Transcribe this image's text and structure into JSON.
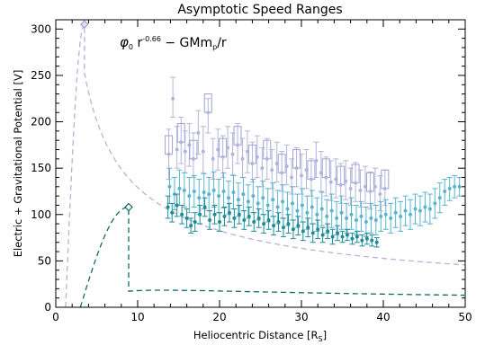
{
  "chart_data": {
    "type": "scatter",
    "title": "Asymptotic Speed Ranges",
    "xlabel": "Heliocentric Distance [R",
    "xlabel_sub": "S",
    "xlabel_end": "]",
    "ylabel": "Electric + Gravitational Potential [V]",
    "xlim": [
      0,
      50
    ],
    "ylim": [
      0,
      310
    ],
    "xticks": [
      0,
      10,
      20,
      30,
      40,
      50
    ],
    "yticks": [
      0,
      50,
      100,
      150,
      200,
      250,
      300
    ],
    "grid": false,
    "annotation": {
      "phi": "φ",
      "phi_sub": "0",
      "r": " r",
      "exponent": "-0.66",
      "rest": " − GMm",
      "p_sub": "p",
      "tail": "/r"
    },
    "colors": {
      "upper": "#b4b4dc",
      "upper_box": "#a0a0d2",
      "mid": "#5ab4cd",
      "lower": "#1e8c96",
      "lower_dark": "#0f6e64"
    },
    "curves": [
      {
        "name": "upper",
        "r0": 3.5,
        "peak": 305,
        "A": 620.6,
        "B": 66.5
      },
      {
        "name": "lower",
        "r0": 8.9,
        "peak": 108,
        "A": 295.3,
        "B": 466.9
      }
    ],
    "peak_markers": [
      {
        "series": "upper",
        "x": 3.5,
        "y": 305
      },
      {
        "series": "lower",
        "x": 8.9,
        "y": 108
      }
    ],
    "series": [
      {
        "name": "upper",
        "points": [
          {
            "x": 13.8,
            "y": 165,
            "lo": 138,
            "hi": 192
          },
          {
            "x": 14.3,
            "y": 225,
            "lo": 205,
            "hi": 248
          },
          {
            "x": 14.8,
            "y": 170,
            "lo": 150,
            "hi": 195
          },
          {
            "x": 15.3,
            "y": 178,
            "lo": 155,
            "hi": 205
          },
          {
            "x": 15.8,
            "y": 168,
            "lo": 145,
            "hi": 190
          },
          {
            "x": 16.3,
            "y": 175,
            "lo": 152,
            "hi": 198
          },
          {
            "x": 16.8,
            "y": 160,
            "lo": 140,
            "hi": 188
          },
          {
            "x": 17.4,
            "y": 188,
            "lo": 165,
            "hi": 212
          },
          {
            "x": 18.0,
            "y": 168,
            "lo": 145,
            "hi": 195
          },
          {
            "x": 18.6,
            "y": 210,
            "lo": 188,
            "hi": 225
          },
          {
            "x": 19.2,
            "y": 160,
            "lo": 138,
            "hi": 182
          },
          {
            "x": 19.8,
            "y": 170,
            "lo": 148,
            "hi": 192
          },
          {
            "x": 20.4,
            "y": 162,
            "lo": 140,
            "hi": 185
          },
          {
            "x": 21.0,
            "y": 172,
            "lo": 150,
            "hi": 195
          },
          {
            "x": 21.6,
            "y": 165,
            "lo": 143,
            "hi": 188
          },
          {
            "x": 22.2,
            "y": 175,
            "lo": 155,
            "hi": 198
          },
          {
            "x": 22.8,
            "y": 160,
            "lo": 140,
            "hi": 182
          },
          {
            "x": 23.4,
            "y": 168,
            "lo": 145,
            "hi": 190
          },
          {
            "x": 24.0,
            "y": 155,
            "lo": 135,
            "hi": 178
          },
          {
            "x": 24.6,
            "y": 162,
            "lo": 140,
            "hi": 185
          },
          {
            "x": 25.2,
            "y": 150,
            "lo": 130,
            "hi": 172
          },
          {
            "x": 25.8,
            "y": 160,
            "lo": 138,
            "hi": 182
          },
          {
            "x": 26.4,
            "y": 148,
            "lo": 128,
            "hi": 170
          },
          {
            "x": 27.0,
            "y": 155,
            "lo": 135,
            "hi": 178
          },
          {
            "x": 27.6,
            "y": 145,
            "lo": 125,
            "hi": 168
          },
          {
            "x": 28.2,
            "y": 152,
            "lo": 132,
            "hi": 175
          },
          {
            "x": 28.8,
            "y": 140,
            "lo": 122,
            "hi": 160
          },
          {
            "x": 29.4,
            "y": 150,
            "lo": 130,
            "hi": 172
          },
          {
            "x": 30.0,
            "y": 142,
            "lo": 122,
            "hi": 165
          },
          {
            "x": 30.6,
            "y": 148,
            "lo": 128,
            "hi": 170
          },
          {
            "x": 31.2,
            "y": 138,
            "lo": 120,
            "hi": 160
          },
          {
            "x": 31.8,
            "y": 158,
            "lo": 140,
            "hi": 178
          },
          {
            "x": 32.4,
            "y": 145,
            "lo": 125,
            "hi": 168
          },
          {
            "x": 33.0,
            "y": 140,
            "lo": 120,
            "hi": 162
          },
          {
            "x": 33.6,
            "y": 135,
            "lo": 115,
            "hi": 158
          },
          {
            "x": 34.2,
            "y": 138,
            "lo": 118,
            "hi": 160
          },
          {
            "x": 34.8,
            "y": 132,
            "lo": 112,
            "hi": 155
          },
          {
            "x": 35.4,
            "y": 136,
            "lo": 116,
            "hi": 158
          },
          {
            "x": 36.0,
            "y": 128,
            "lo": 110,
            "hi": 150
          },
          {
            "x": 36.6,
            "y": 134,
            "lo": 114,
            "hi": 156
          },
          {
            "x": 37.2,
            "y": 126,
            "lo": 108,
            "hi": 148
          },
          {
            "x": 37.8,
            "y": 130,
            "lo": 112,
            "hi": 152
          },
          {
            "x": 38.4,
            "y": 125,
            "lo": 106,
            "hi": 146
          },
          {
            "x": 39.0,
            "y": 130,
            "lo": 110,
            "hi": 150
          },
          {
            "x": 39.6,
            "y": 122,
            "lo": 104,
            "hi": 142
          },
          {
            "x": 40.2,
            "y": 128,
            "lo": 110,
            "hi": 148
          }
        ]
      },
      {
        "name": "mid",
        "points": [
          {
            "x": 13.9,
            "y": 130,
            "lo": 112,
            "hi": 150
          },
          {
            "x": 14.5,
            "y": 122,
            "lo": 105,
            "hi": 140
          },
          {
            "x": 15.1,
            "y": 128,
            "lo": 110,
            "hi": 148
          },
          {
            "x": 15.7,
            "y": 126,
            "lo": 108,
            "hi": 145
          },
          {
            "x": 16.3,
            "y": 120,
            "lo": 102,
            "hi": 140
          },
          {
            "x": 16.9,
            "y": 125,
            "lo": 108,
            "hi": 142
          },
          {
            "x": 17.5,
            "y": 118,
            "lo": 100,
            "hi": 138
          },
          {
            "x": 18.1,
            "y": 124,
            "lo": 106,
            "hi": 144
          },
          {
            "x": 18.7,
            "y": 122,
            "lo": 104,
            "hi": 140
          },
          {
            "x": 19.3,
            "y": 126,
            "lo": 108,
            "hi": 146
          },
          {
            "x": 19.9,
            "y": 120,
            "lo": 102,
            "hi": 138
          },
          {
            "x": 20.5,
            "y": 125,
            "lo": 107,
            "hi": 145
          },
          {
            "x": 21.1,
            "y": 118,
            "lo": 100,
            "hi": 136
          },
          {
            "x": 21.7,
            "y": 124,
            "lo": 106,
            "hi": 142
          },
          {
            "x": 22.3,
            "y": 116,
            "lo": 98,
            "hi": 134
          },
          {
            "x": 22.9,
            "y": 122,
            "lo": 104,
            "hi": 140
          },
          {
            "x": 23.5,
            "y": 114,
            "lo": 96,
            "hi": 132
          },
          {
            "x": 24.1,
            "y": 120,
            "lo": 102,
            "hi": 138
          },
          {
            "x": 24.7,
            "y": 112,
            "lo": 94,
            "hi": 130
          },
          {
            "x": 25.3,
            "y": 118,
            "lo": 100,
            "hi": 136
          },
          {
            "x": 25.9,
            "y": 110,
            "lo": 92,
            "hi": 128
          },
          {
            "x": 26.5,
            "y": 116,
            "lo": 98,
            "hi": 134
          },
          {
            "x": 27.1,
            "y": 108,
            "lo": 90,
            "hi": 126
          },
          {
            "x": 27.7,
            "y": 114,
            "lo": 96,
            "hi": 132
          },
          {
            "x": 28.3,
            "y": 106,
            "lo": 88,
            "hi": 124
          },
          {
            "x": 28.9,
            "y": 112,
            "lo": 94,
            "hi": 130
          },
          {
            "x": 29.5,
            "y": 104,
            "lo": 86,
            "hi": 122
          },
          {
            "x": 30.1,
            "y": 110,
            "lo": 92,
            "hi": 128
          },
          {
            "x": 30.7,
            "y": 102,
            "lo": 84,
            "hi": 120
          },
          {
            "x": 31.3,
            "y": 108,
            "lo": 90,
            "hi": 126
          },
          {
            "x": 31.9,
            "y": 100,
            "lo": 82,
            "hi": 118
          },
          {
            "x": 32.5,
            "y": 106,
            "lo": 88,
            "hi": 124
          },
          {
            "x": 33.1,
            "y": 98,
            "lo": 80,
            "hi": 116
          },
          {
            "x": 33.7,
            "y": 104,
            "lo": 86,
            "hi": 122
          },
          {
            "x": 34.3,
            "y": 96,
            "lo": 78,
            "hi": 114
          },
          {
            "x": 34.9,
            "y": 102,
            "lo": 84,
            "hi": 120
          },
          {
            "x": 35.5,
            "y": 96,
            "lo": 80,
            "hi": 112
          },
          {
            "x": 36.1,
            "y": 100,
            "lo": 84,
            "hi": 118
          },
          {
            "x": 36.7,
            "y": 94,
            "lo": 78,
            "hi": 110
          },
          {
            "x": 37.3,
            "y": 98,
            "lo": 82,
            "hi": 114
          },
          {
            "x": 37.9,
            "y": 92,
            "lo": 76,
            "hi": 108
          },
          {
            "x": 38.5,
            "y": 96,
            "lo": 80,
            "hi": 112
          },
          {
            "x": 39.1,
            "y": 94,
            "lo": 78,
            "hi": 110
          },
          {
            "x": 39.7,
            "y": 98,
            "lo": 82,
            "hi": 114
          },
          {
            "x": 40.3,
            "y": 100,
            "lo": 84,
            "hi": 116
          },
          {
            "x": 40.9,
            "y": 96,
            "lo": 80,
            "hi": 112
          },
          {
            "x": 41.5,
            "y": 102,
            "lo": 86,
            "hi": 118
          },
          {
            "x": 42.1,
            "y": 98,
            "lo": 82,
            "hi": 114
          },
          {
            "x": 42.7,
            "y": 104,
            "lo": 88,
            "hi": 120
          },
          {
            "x": 43.3,
            "y": 100,
            "lo": 84,
            "hi": 116
          },
          {
            "x": 43.9,
            "y": 106,
            "lo": 90,
            "hi": 122
          },
          {
            "x": 44.5,
            "y": 104,
            "lo": 88,
            "hi": 120
          },
          {
            "x": 45.1,
            "y": 108,
            "lo": 92,
            "hi": 124
          },
          {
            "x": 45.7,
            "y": 106,
            "lo": 90,
            "hi": 122
          },
          {
            "x": 46.3,
            "y": 112,
            "lo": 96,
            "hi": 128
          },
          {
            "x": 46.9,
            "y": 118,
            "lo": 102,
            "hi": 134
          },
          {
            "x": 47.5,
            "y": 125,
            "lo": 110,
            "hi": 138
          },
          {
            "x": 48.1,
            "y": 128,
            "lo": 115,
            "hi": 140
          },
          {
            "x": 48.7,
            "y": 130,
            "lo": 118,
            "hi": 142
          },
          {
            "x": 49.3,
            "y": 130,
            "lo": 120,
            "hi": 140
          }
        ]
      },
      {
        "name": "lower",
        "points": [
          {
            "x": 13.7,
            "y": 108,
            "lo": 96,
            "hi": 120
          },
          {
            "x": 14.2,
            "y": 102,
            "lo": 92,
            "hi": 112
          },
          {
            "x": 14.8,
            "y": 110,
            "lo": 98,
            "hi": 122
          },
          {
            "x": 15.4,
            "y": 100,
            "lo": 90,
            "hi": 110
          },
          {
            "x": 16.0,
            "y": 96,
            "lo": 86,
            "hi": 106
          },
          {
            "x": 16.5,
            "y": 88,
            "lo": 80,
            "hi": 96
          },
          {
            "x": 17.0,
            "y": 92,
            "lo": 82,
            "hi": 102
          },
          {
            "x": 17.6,
            "y": 100,
            "lo": 90,
            "hi": 110
          },
          {
            "x": 18.2,
            "y": 108,
            "lo": 98,
            "hi": 118
          },
          {
            "x": 18.8,
            "y": 94,
            "lo": 84,
            "hi": 104
          },
          {
            "x": 19.4,
            "y": 100,
            "lo": 90,
            "hi": 110
          },
          {
            "x": 20.0,
            "y": 92,
            "lo": 82,
            "hi": 102
          },
          {
            "x": 20.6,
            "y": 98,
            "lo": 88,
            "hi": 108
          },
          {
            "x": 21.2,
            "y": 102,
            "lo": 92,
            "hi": 112
          },
          {
            "x": 21.8,
            "y": 96,
            "lo": 86,
            "hi": 106
          },
          {
            "x": 22.4,
            "y": 100,
            "lo": 90,
            "hi": 110
          },
          {
            "x": 23.0,
            "y": 94,
            "lo": 84,
            "hi": 104
          },
          {
            "x": 23.6,
            "y": 98,
            "lo": 88,
            "hi": 108
          },
          {
            "x": 24.2,
            "y": 92,
            "lo": 82,
            "hi": 102
          },
          {
            "x": 24.8,
            "y": 96,
            "lo": 86,
            "hi": 106
          },
          {
            "x": 25.4,
            "y": 90,
            "lo": 80,
            "hi": 100
          },
          {
            "x": 26.0,
            "y": 94,
            "lo": 84,
            "hi": 104
          },
          {
            "x": 26.6,
            "y": 88,
            "lo": 78,
            "hi": 98
          },
          {
            "x": 27.2,
            "y": 92,
            "lo": 82,
            "hi": 102
          },
          {
            "x": 27.8,
            "y": 86,
            "lo": 76,
            "hi": 96
          },
          {
            "x": 28.4,
            "y": 90,
            "lo": 80,
            "hi": 100
          },
          {
            "x": 29.0,
            "y": 84,
            "lo": 74,
            "hi": 94
          },
          {
            "x": 29.6,
            "y": 88,
            "lo": 78,
            "hi": 98
          },
          {
            "x": 30.2,
            "y": 82,
            "lo": 72,
            "hi": 92
          },
          {
            "x": 30.8,
            "y": 86,
            "lo": 76,
            "hi": 96
          },
          {
            "x": 31.4,
            "y": 80,
            "lo": 70,
            "hi": 90
          },
          {
            "x": 32.0,
            "y": 84,
            "lo": 74,
            "hi": 94
          },
          {
            "x": 32.6,
            "y": 78,
            "lo": 70,
            "hi": 86
          },
          {
            "x": 33.2,
            "y": 82,
            "lo": 74,
            "hi": 90
          },
          {
            "x": 33.8,
            "y": 76,
            "lo": 68,
            "hi": 84
          },
          {
            "x": 34.4,
            "y": 80,
            "lo": 72,
            "hi": 88
          },
          {
            "x": 35.0,
            "y": 76,
            "lo": 70,
            "hi": 82
          },
          {
            "x": 35.6,
            "y": 78,
            "lo": 72,
            "hi": 84
          },
          {
            "x": 36.2,
            "y": 74,
            "lo": 68,
            "hi": 80
          },
          {
            "x": 36.8,
            "y": 76,
            "lo": 70,
            "hi": 82
          },
          {
            "x": 37.4,
            "y": 72,
            "lo": 66,
            "hi": 78
          },
          {
            "x": 38.0,
            "y": 74,
            "lo": 68,
            "hi": 80
          },
          {
            "x": 38.6,
            "y": 72,
            "lo": 66,
            "hi": 78
          },
          {
            "x": 39.2,
            "y": 70,
            "lo": 65,
            "hi": 75
          }
        ]
      }
    ]
  }
}
